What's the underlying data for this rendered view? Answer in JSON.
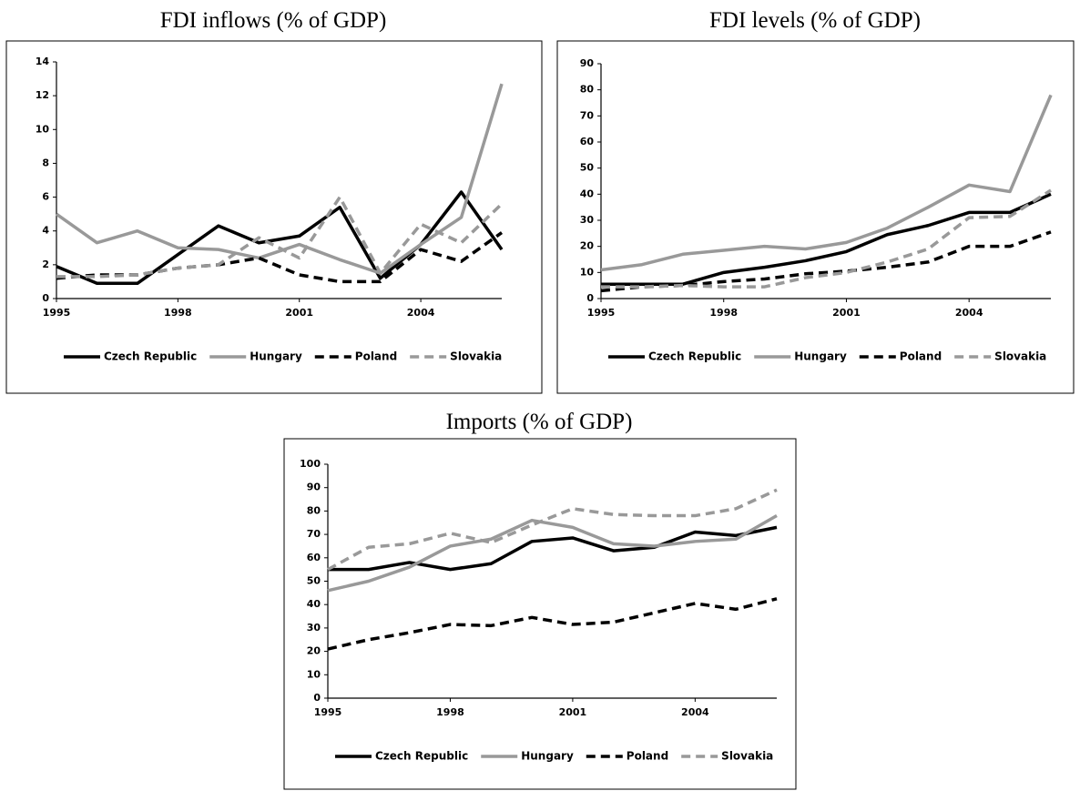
{
  "chart_data": [
    {
      "type": "line",
      "title": "FDI inflows (% of GDP)",
      "x": [
        1995,
        1996,
        1997,
        1998,
        1999,
        2000,
        2001,
        2002,
        2003,
        2004,
        2005,
        2006
      ],
      "xlim": [
        1995,
        2006
      ],
      "xticks": [
        1995,
        1998,
        2001,
        2004
      ],
      "ylim": [
        0,
        14
      ],
      "yticks": [
        0,
        2,
        4,
        6,
        8,
        10,
        12,
        14
      ],
      "series": [
        {
          "name": "Czech Republic",
          "color": "#000000",
          "dashed": false,
          "values": [
            1.9,
            0.9,
            0.9,
            2.6,
            4.3,
            3.3,
            3.7,
            5.4,
            1.2,
            3.2,
            6.3,
            2.9
          ]
        },
        {
          "name": "Hungary",
          "color": "#999999",
          "dashed": false,
          "values": [
            5.0,
            3.3,
            4.0,
            3.0,
            2.9,
            2.4,
            3.2,
            2.3,
            1.5,
            3.2,
            4.8,
            12.7
          ]
        },
        {
          "name": "Poland",
          "color": "#000000",
          "dashed": true,
          "values": [
            1.2,
            1.4,
            1.4,
            1.8,
            2.0,
            2.4,
            1.4,
            1.0,
            1.0,
            2.9,
            2.2,
            3.9
          ]
        },
        {
          "name": "Slovakia",
          "color": "#999999",
          "dashed": true,
          "values": [
            1.3,
            1.3,
            1.4,
            1.8,
            2.0,
            3.6,
            2.4,
            6.0,
            1.5,
            4.4,
            3.3,
            5.6
          ]
        }
      ]
    },
    {
      "type": "line",
      "title": "FDI levels (% of GDP)",
      "x": [
        1995,
        1996,
        1997,
        1998,
        1999,
        2000,
        2001,
        2002,
        2003,
        2004,
        2005,
        2006
      ],
      "xlim": [
        1995,
        2006
      ],
      "xticks": [
        1995,
        1998,
        2001,
        2004
      ],
      "ylim": [
        0,
        90
      ],
      "yticks": [
        0,
        10,
        20,
        30,
        40,
        50,
        60,
        70,
        80,
        90
      ],
      "series": [
        {
          "name": "Czech Republic",
          "color": "#000000",
          "dashed": false,
          "values": [
            5.5,
            5.5,
            5.5,
            10,
            12,
            14.5,
            18,
            24.5,
            28,
            33,
            33,
            40
          ]
        },
        {
          "name": "Hungary",
          "color": "#999999",
          "dashed": false,
          "values": [
            11,
            13,
            17,
            18.5,
            20,
            19,
            21.5,
            27,
            35,
            43.5,
            41,
            78
          ]
        },
        {
          "name": "Poland",
          "color": "#000000",
          "dashed": true,
          "values": [
            3,
            4.5,
            5,
            6.5,
            7.5,
            9.5,
            10.5,
            12,
            14,
            20,
            20,
            25.5
          ]
        },
        {
          "name": "Slovakia",
          "color": "#999999",
          "dashed": true,
          "values": [
            4.5,
            4.5,
            5,
            4.5,
            4.5,
            8,
            10,
            14,
            19,
            31,
            31.5,
            41.5
          ]
        }
      ]
    },
    {
      "type": "line",
      "title": "Imports (% of GDP)",
      "x": [
        1995,
        1996,
        1997,
        1998,
        1999,
        2000,
        2001,
        2002,
        2003,
        2004,
        2005,
        2006
      ],
      "xlim": [
        1995,
        2006
      ],
      "xticks": [
        1995,
        1998,
        2001,
        2004
      ],
      "ylim": [
        0,
        100
      ],
      "yticks": [
        0,
        10,
        20,
        30,
        40,
        50,
        60,
        70,
        80,
        90,
        100
      ],
      "series": [
        {
          "name": "Czech Republic",
          "color": "#000000",
          "dashed": false,
          "values": [
            55,
            55,
            58,
            55,
            57.5,
            67,
            68.5,
            63,
            64.5,
            71,
            69.5,
            73
          ]
        },
        {
          "name": "Hungary",
          "color": "#999999",
          "dashed": false,
          "values": [
            46,
            50,
            56,
            65,
            68,
            76,
            73,
            66,
            65,
            67,
            68,
            78
          ]
        },
        {
          "name": "Poland",
          "color": "#000000",
          "dashed": true,
          "values": [
            21,
            25,
            28,
            31.5,
            31,
            34.5,
            31.5,
            32.5,
            36.5,
            40.5,
            38,
            42.5
          ]
        },
        {
          "name": "Slovakia",
          "color": "#999999",
          "dashed": true,
          "values": [
            55,
            64.5,
            66,
            70.5,
            66.5,
            74,
            81,
            78.5,
            78,
            78,
            81,
            89
          ]
        }
      ]
    }
  ]
}
